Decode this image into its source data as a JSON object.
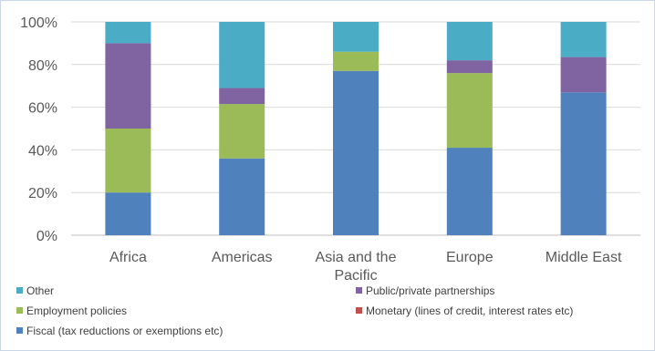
{
  "chart_data": {
    "type": "bar",
    "stacked": true,
    "percent_stacked": true,
    "categories": [
      "Africa",
      "Americas",
      "Asia and the Pacific",
      "Europe",
      "Middle East"
    ],
    "series": [
      {
        "name": "Fiscal (tax reductions or exemptions etc)",
        "color": "#4f81bd",
        "values": [
          20,
          36,
          77,
          41,
          67
        ]
      },
      {
        "name": "Monetary (lines of credit, interest rates etc)",
        "color": "#c0504d",
        "values": [
          0,
          0,
          0,
          0,
          0
        ]
      },
      {
        "name": "Employment policies",
        "color": "#9bbb59",
        "values": [
          30,
          25.5,
          9,
          35,
          0
        ]
      },
      {
        "name": "Public/private partnerships",
        "color": "#8064a2",
        "values": [
          40,
          7.5,
          0,
          6,
          16.5
        ]
      },
      {
        "name": "Other",
        "color": "#4bacc6",
        "values": [
          10,
          31,
          14,
          18,
          16.5
        ]
      }
    ],
    "y_ticks": [
      "0%",
      "20%",
      "40%",
      "60%",
      "80%",
      "100%"
    ],
    "ylim": [
      0,
      100
    ],
    "grid": true,
    "legend_position": "bottom",
    "legend_order": [
      "Other",
      "Public/private partnerships",
      "Employment policies",
      "Monetary (lines of credit, interest rates etc)",
      "Fiscal (tax reductions or exemptions etc)"
    ]
  }
}
